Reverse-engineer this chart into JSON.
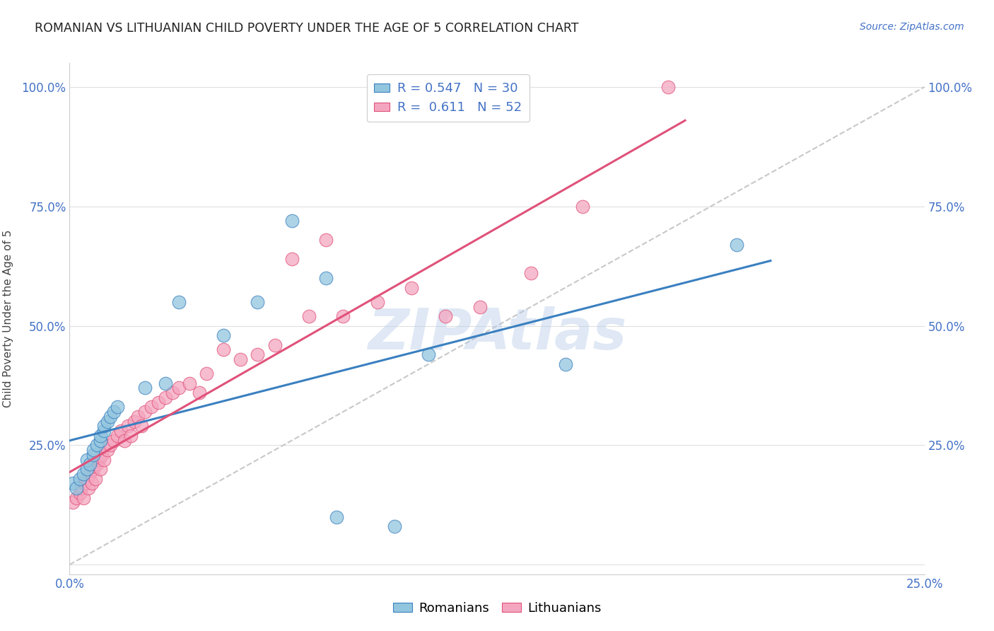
{
  "title": "ROMANIAN VS LITHUANIAN CHILD POVERTY UNDER THE AGE OF 5 CORRELATION CHART",
  "source": "Source: ZipAtlas.com",
  "ylabel": "Child Poverty Under the Age of 5",
  "xlim": [
    0.0,
    25.0
  ],
  "ylim": [
    -2.0,
    105.0
  ],
  "xticks": [
    0.0,
    5.0,
    10.0,
    15.0,
    20.0,
    25.0
  ],
  "xtick_labels": [
    "0.0%",
    "",
    "",
    "",
    "",
    "25.0%"
  ],
  "yticks": [
    0.0,
    25.0,
    50.0,
    75.0,
    100.0
  ],
  "ytick_labels_left": [
    "",
    "25.0%",
    "50.0%",
    "75.0%",
    "100.0%"
  ],
  "ytick_labels_right": [
    "",
    "25.0%",
    "50.0%",
    "75.0%",
    "100.0%"
  ],
  "romanian_color": "#92c5de",
  "lithuanian_color": "#f4a6c0",
  "trendline_ro_color": "#3a80c0",
  "trendline_li_color": "#e0527a",
  "diagonal_color": "#c8c8c8",
  "legend_r_ro": "0.547",
  "legend_n_ro": "30",
  "legend_r_li": "0.611",
  "legend_n_li": "52",
  "romanians_x": [
    0.1,
    0.2,
    0.3,
    0.4,
    0.5,
    0.5,
    0.6,
    0.7,
    0.7,
    0.8,
    0.9,
    0.9,
    1.0,
    1.0,
    1.1,
    1.2,
    1.3,
    1.4,
    2.2,
    2.8,
    3.2,
    4.5,
    5.5,
    6.5,
    7.5,
    7.8,
    9.5,
    10.5,
    14.5,
    19.5
  ],
  "romanians_y": [
    17.0,
    16.0,
    18.0,
    19.0,
    20.0,
    22.0,
    21.0,
    23.0,
    24.0,
    25.0,
    26.0,
    27.0,
    28.0,
    29.0,
    30.0,
    31.0,
    32.0,
    33.0,
    37.0,
    38.0,
    55.0,
    48.0,
    55.0,
    72.0,
    60.0,
    10.0,
    8.0,
    44.0,
    42.0,
    67.0
  ],
  "lithuanians_x": [
    0.1,
    0.2,
    0.3,
    0.35,
    0.4,
    0.45,
    0.5,
    0.55,
    0.6,
    0.65,
    0.7,
    0.75,
    0.8,
    0.85,
    0.9,
    0.95,
    1.0,
    1.1,
    1.2,
    1.3,
    1.4,
    1.5,
    1.6,
    1.7,
    1.8,
    1.9,
    2.0,
    2.1,
    2.2,
    2.4,
    2.6,
    2.8,
    3.0,
    3.2,
    3.5,
    3.8,
    4.0,
    4.5,
    5.0,
    5.5,
    6.0,
    6.5,
    7.0,
    7.5,
    8.0,
    9.0,
    10.0,
    11.0,
    12.0,
    13.5,
    15.0,
    17.5
  ],
  "lithuanians_y": [
    13.0,
    14.0,
    15.0,
    16.0,
    14.0,
    17.0,
    18.0,
    16.0,
    19.0,
    17.0,
    20.0,
    18.0,
    21.0,
    22.0,
    20.0,
    23.0,
    22.0,
    24.0,
    25.0,
    26.0,
    27.0,
    28.0,
    26.0,
    29.0,
    27.0,
    30.0,
    31.0,
    29.0,
    32.0,
    33.0,
    34.0,
    35.0,
    36.0,
    37.0,
    38.0,
    36.0,
    40.0,
    45.0,
    43.0,
    44.0,
    46.0,
    64.0,
    52.0,
    68.0,
    52.0,
    55.0,
    58.0,
    52.0,
    54.0,
    61.0,
    75.0,
    100.0
  ],
  "marker_size": 180,
  "background_color": "#ffffff",
  "title_color": "#222222",
  "axis_label_color": "#444444",
  "tick_color": "#4472c6",
  "grid_color": "#e0e0e0",
  "watermark_text": "ZIPAtlas",
  "watermark_color": "#b8cce8",
  "watermark_alpha": 0.45
}
